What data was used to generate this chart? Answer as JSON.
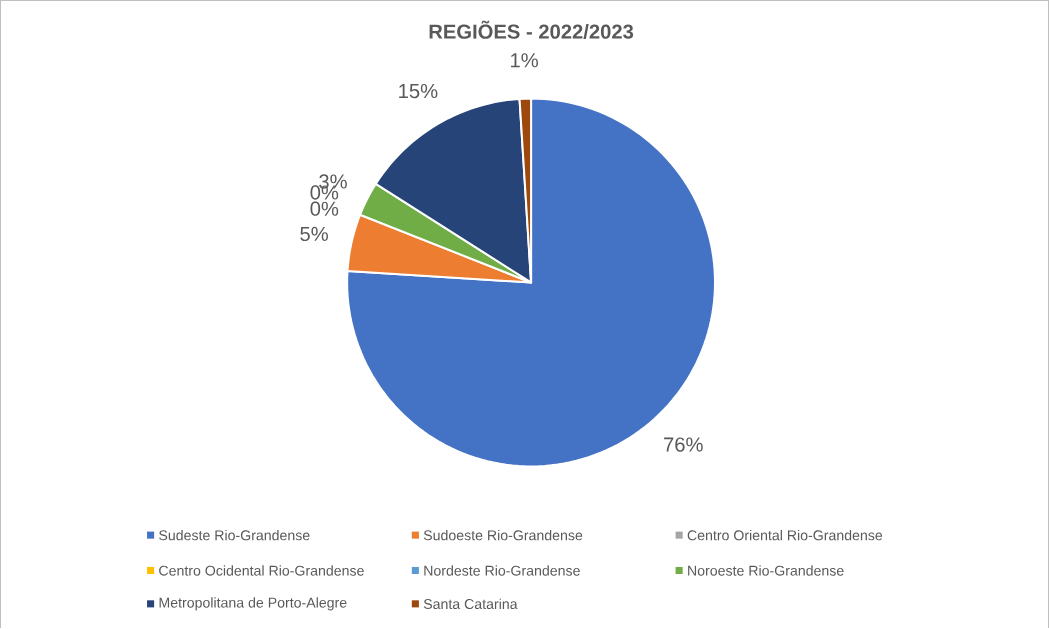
{
  "chart_data": {
    "type": "pie",
    "title": "REGIÕES - 2022/2023",
    "categories": [
      "Sudeste Rio-Grandense",
      "Sudoeste Rio-Grandense",
      "Centro Oriental Rio-Grandense",
      "Centro Ocidental Rio-Grandense",
      "Nordeste Rio-Grandense",
      "Noroeste Rio-Grandense",
      "Metropolitana de Porto-Alegre",
      "Santa Catarina"
    ],
    "values": [
      76,
      5,
      0,
      0,
      0,
      3,
      15,
      1
    ],
    "value_labels": [
      "76%",
      "5%",
      "0%",
      "0%",
      null,
      "3%",
      "15%",
      "1%"
    ],
    "colors": [
      "#4472c4",
      "#ed7d31",
      "#a5a5a5",
      "#ffc000",
      "#5b9bd5",
      "#70ad47",
      "#264478",
      "#9e480e"
    ],
    "legend": "bottom"
  }
}
